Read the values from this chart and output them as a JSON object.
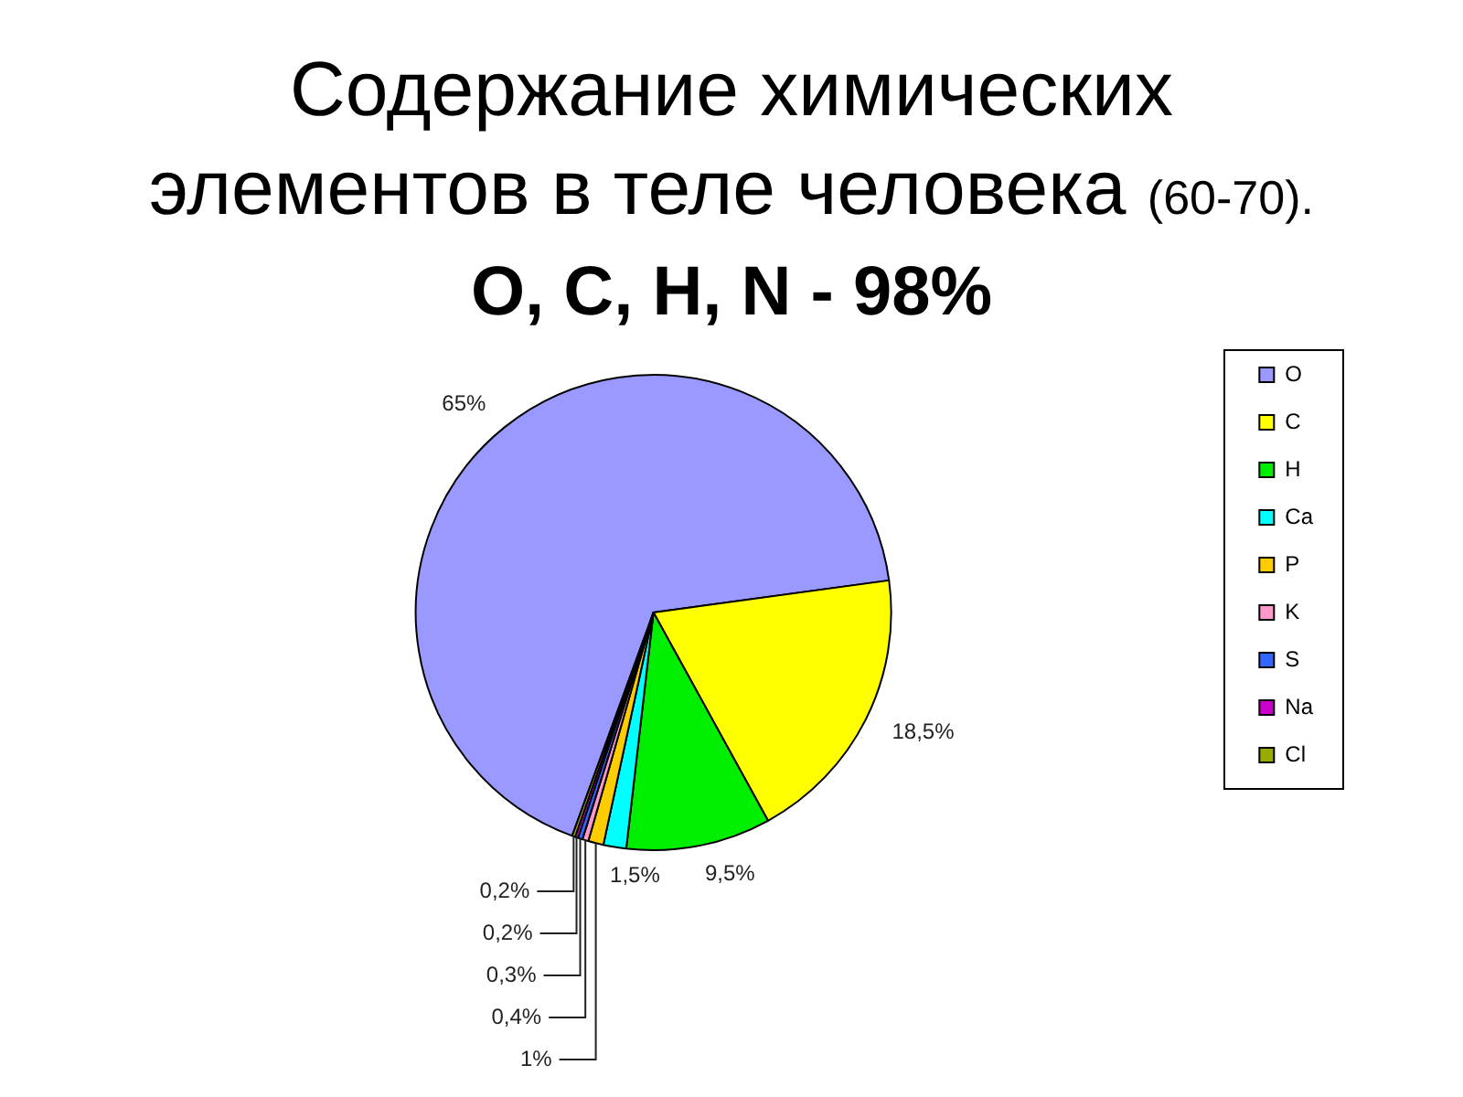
{
  "chart_data": {
    "type": "pie",
    "title": "Содержание химических\nэлементов в теле человека (60-70).",
    "subtitle": "O, C, H, N - 98%",
    "categories": [
      "O",
      "C",
      "H",
      "Ca",
      "P",
      "K",
      "S",
      "Na",
      "Cl"
    ],
    "values": [
      65,
      18.5,
      9.5,
      1.5,
      1,
      0.4,
      0.3,
      0.2,
      0.2
    ],
    "colors": [
      "#9999ff",
      "#ffff00",
      "#00ee00",
      "#00ffff",
      "#ffcc00",
      "#ff99cc",
      "#3366ff",
      "#cc00cc",
      "#99aa00"
    ],
    "value_labels": [
      "65%",
      "18,5%",
      "9,5%",
      "1,5%",
      "1%",
      "0,4%",
      "0,3%",
      "0,2%",
      "0,2%"
    ],
    "legend": "right"
  }
}
